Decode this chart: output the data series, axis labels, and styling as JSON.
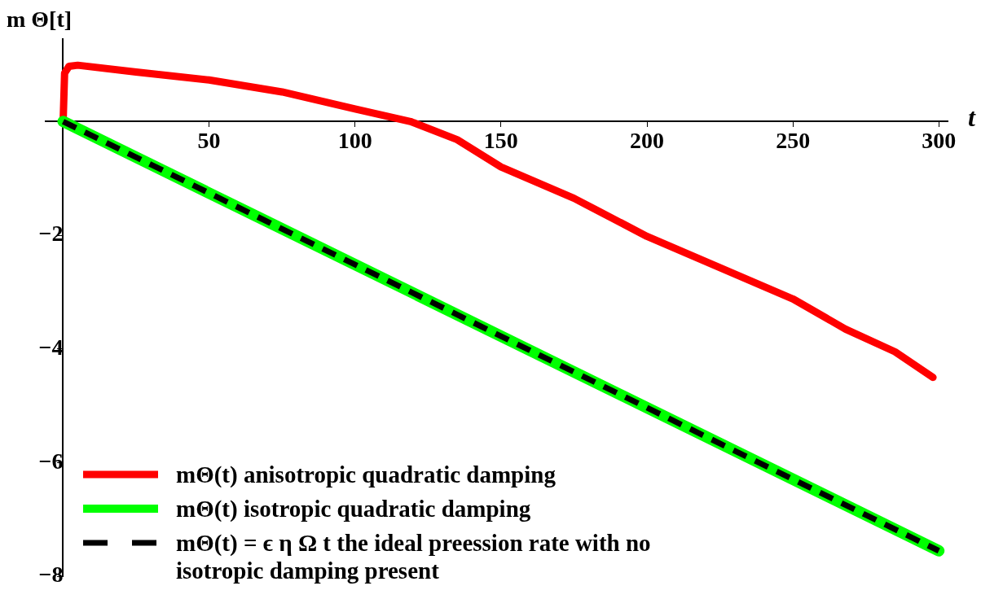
{
  "chart_data": {
    "type": "line",
    "ylabel": "m Θ[t]",
    "xlabel": "t",
    "xlim": [
      -6,
      303
    ],
    "ylim": [
      -8,
      1.45
    ],
    "xticks": [
      50,
      100,
      150,
      200,
      250,
      300
    ],
    "yticks": [
      -8,
      -6,
      -4,
      -2
    ],
    "grid": false,
    "legend": "bottom left",
    "marker": "none",
    "series": [
      {
        "name": "mΘ(t)   anisotropic quadratic damping",
        "color": "#ff0000",
        "line_style": "solid",
        "x": [
          0,
          0.5,
          2,
          5,
          25,
          50,
          75,
          100,
          119,
          135,
          150,
          175,
          200,
          225,
          250,
          268,
          285,
          298
        ],
        "values": [
          0,
          0.85,
          0.97,
          0.99,
          0.87,
          0.73,
          0.52,
          0.22,
          0,
          -0.32,
          -0.8,
          -1.35,
          -2.02,
          -2.57,
          -3.12,
          -3.65,
          -4.05,
          -4.5
        ]
      },
      {
        "name": "mΘ(t)   isotropic quadratic damping",
        "color": "#00ff00",
        "line_style": "solid",
        "x": [
          0,
          300
        ],
        "values": [
          0,
          -7.55
        ]
      },
      {
        "name": "mΘ(t) = ϵ η Ω t   the ideal preession rate with no isotropic damping present",
        "color": "#000000",
        "line_style": "dashed",
        "x": [
          0,
          300
        ],
        "values": [
          0,
          -7.55
        ]
      }
    ]
  }
}
